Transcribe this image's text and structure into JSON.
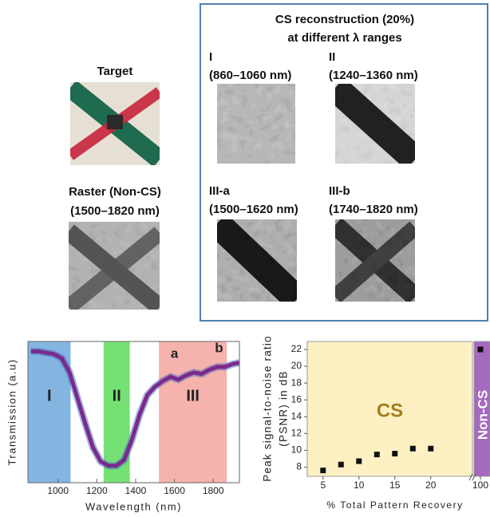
{
  "panels": {
    "target": {
      "title": "Target"
    },
    "raster": {
      "title": "Raster (Non-CS)",
      "range": "(1500–1820 nm)",
      "color": "#e8301c"
    },
    "cs": {
      "title": "CS reconstruction (20%)",
      "subtitle": "at different λ ranges",
      "items": [
        {
          "label": "I",
          "range": "(860–1060 nm)",
          "color": "#5b9bd5"
        },
        {
          "label": "II",
          "range": "(1240–1360 nm)",
          "color": "#5cb85c"
        },
        {
          "label": "III-a",
          "range": "(1500–1620 nm)",
          "color": "#e8301c"
        },
        {
          "label": "III-b",
          "range": "(1740–1820 nm)",
          "color": "#e8301c"
        }
      ]
    }
  },
  "chart_data": [
    {
      "type": "line",
      "xlabel": "Wavelength (nm)",
      "ylabel": "Transmission (a.u)",
      "xlim": [
        845,
        1935
      ],
      "xticks": [
        1000,
        1200,
        1400,
        1600,
        1800
      ],
      "ylim": [
        0,
        1
      ],
      "bands": [
        {
          "label": "I",
          "range": [
            845,
            1065
          ],
          "color": "#6fa8dc"
        },
        {
          "label": "II",
          "range": [
            1235,
            1370
          ],
          "color": "#5ddc5d"
        },
        {
          "label": "III",
          "range": [
            1520,
            1870
          ],
          "color": "#f4a6a0"
        }
      ],
      "annotations": [
        {
          "text": "a",
          "x": 1600,
          "y": 0.83
        },
        {
          "text": "b",
          "x": 1830,
          "y": 0.87
        }
      ],
      "series": [
        {
          "color": "#7b2a8c",
          "x": [
            860,
            900,
            940,
            980,
            1020,
            1060,
            1100,
            1140,
            1180,
            1220,
            1260,
            1300,
            1340,
            1380,
            1420,
            1460,
            1500,
            1540,
            1580,
            1620,
            1660,
            1700,
            1740,
            1780,
            1820,
            1860,
            1900,
            1935
          ],
          "values": [
            0.93,
            0.93,
            0.92,
            0.91,
            0.88,
            0.78,
            0.6,
            0.42,
            0.25,
            0.15,
            0.12,
            0.12,
            0.16,
            0.3,
            0.48,
            0.62,
            0.68,
            0.72,
            0.75,
            0.73,
            0.76,
            0.78,
            0.77,
            0.8,
            0.82,
            0.82,
            0.84,
            0.85
          ]
        }
      ]
    },
    {
      "type": "scatter",
      "ylabel": [
        "Peak signal-to-noise ratio",
        "(PSNR) in dB"
      ],
      "xlabel": "% Total Pattern Recovery",
      "ylim": [
        6.9,
        22.95
      ],
      "yticks": [
        8,
        10,
        12,
        14,
        16,
        18,
        20,
        22
      ],
      "segments": [
        {
          "label": "CS",
          "bg": "#fdf1c4",
          "label_color": "#a47d1b",
          "xlim": [
            2.8,
            25.8
          ],
          "xticks": [
            5,
            10,
            15,
            20
          ],
          "x": [
            5,
            7.5,
            10,
            12.5,
            15,
            17.5,
            20
          ],
          "values": [
            7.6,
            8.3,
            8.7,
            9.5,
            9.6,
            10.2,
            10.2
          ]
        },
        {
          "label": "Non-CS",
          "bg": "#a569bd",
          "label_color": "#ffffff",
          "xlim": [
            99,
            101.5
          ],
          "xticks": [
            100
          ],
          "x": [
            100
          ],
          "values": [
            22
          ]
        }
      ],
      "color": "#111111"
    }
  ]
}
